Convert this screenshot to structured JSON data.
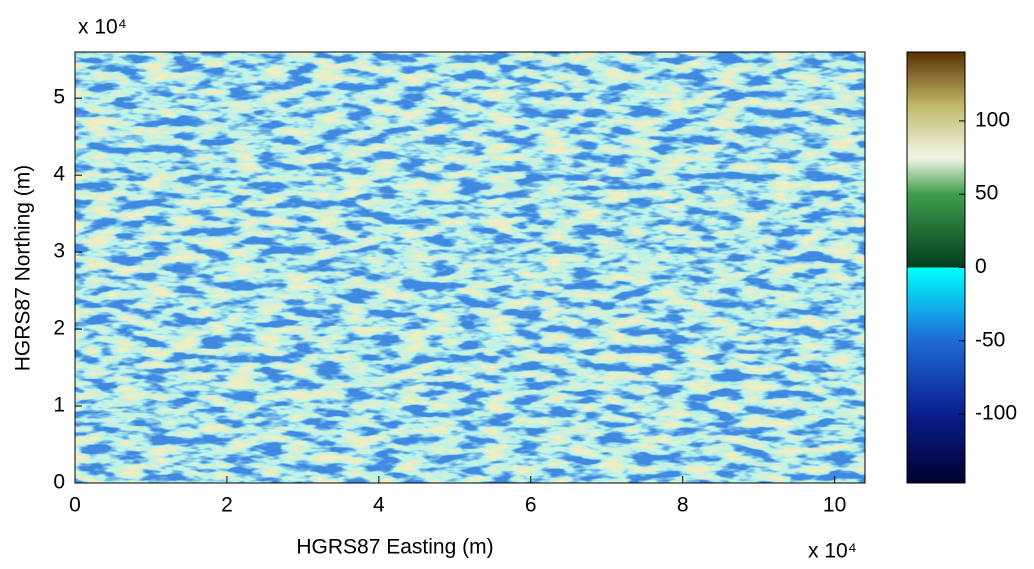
{
  "chart_data": {
    "type": "heatmap",
    "xlabel": "HGRS87 Easting (m)",
    "ylabel": "HGRS87 Northing (m)",
    "x_multiplier": "x 10⁴",
    "y_multiplier": "x 10⁴",
    "xlim": [
      0,
      104000
    ],
    "ylim": [
      0,
      56000
    ],
    "xticks": [
      0,
      {
        "value": 20000,
        "label": "2"
      },
      {
        "value": 40000,
        "label": "4"
      },
      {
        "value": 60000,
        "label": "6"
      },
      {
        "value": 80000,
        "label": "8"
      },
      {
        "value": 100000,
        "label": "10"
      }
    ],
    "yticks": [
      0,
      {
        "value": 10000,
        "label": "1"
      },
      {
        "value": 20000,
        "label": "2"
      },
      {
        "value": 30000,
        "label": "3"
      },
      {
        "value": 40000,
        "label": "4"
      },
      {
        "value": 50000,
        "label": "5"
      }
    ],
    "colorbar": {
      "lim": [
        -147,
        147
      ],
      "ticks": [
        -100,
        -50,
        0,
        50,
        100
      ],
      "colormap": [
        {
          "value": -147,
          "color": "#00002e"
        },
        {
          "value": -100,
          "color": "#0a1f8f"
        },
        {
          "value": -50,
          "color": "#1f6ad6"
        },
        {
          "value": 0,
          "color": "#00ffff"
        },
        {
          "value": 0,
          "color": "#003d1c"
        },
        {
          "value": 50,
          "color": "#3f9d4e"
        },
        {
          "value": 75,
          "color": "#f2f5e6"
        },
        {
          "value": 110,
          "color": "#c2bb6c"
        },
        {
          "value": 147,
          "color": "#5a2f00"
        }
      ]
    }
  }
}
